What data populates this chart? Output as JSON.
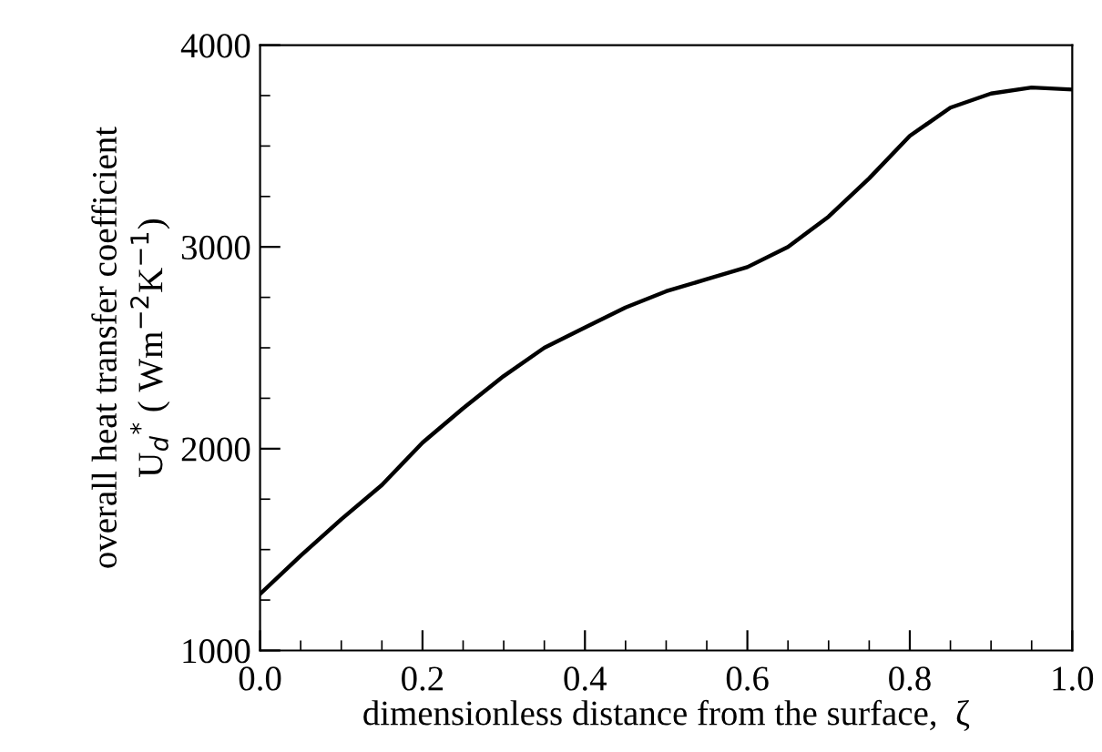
{
  "chart_data": {
    "type": "line",
    "xlabel": "dimensionless distance from the surface,  ζ",
    "ylabel": "overall heat transfer coefficient\nU$_{d}$$^{*}$ ( Wm$^{−2}$K$^{−1}$)",
    "x": [
      0,
      0.05,
      0.1,
      0.15,
      0.2,
      0.25,
      0.3,
      0.35,
      0.4,
      0.45,
      0.5,
      0.55,
      0.6,
      0.65,
      0.7,
      0.75,
      0.8,
      0.85,
      0.9,
      0.95,
      1.0
    ],
    "series": [
      {
        "color": "#000000",
        "values": [
          1280,
          1470,
          1650,
          1820,
          2030,
          2200,
          2360,
          2500,
          2600,
          2700,
          2780,
          2840,
          2900,
          3000,
          3150,
          3340,
          3550,
          3690,
          3760,
          3790,
          3780
        ]
      }
    ],
    "xlim": [
      0,
      1.0
    ],
    "ylim": [
      1000,
      4000
    ],
    "xticks": [
      {
        "value": 0,
        "label": "0.0"
      },
      0.2,
      0.4,
      0.6,
      0.8,
      {
        "value": 1.0,
        "label": "1.0"
      }
    ],
    "yticks": [
      1000,
      2000,
      3000,
      4000
    ],
    "grid": false,
    "legend": false,
    "marker": "none",
    "line_style": "solid"
  }
}
